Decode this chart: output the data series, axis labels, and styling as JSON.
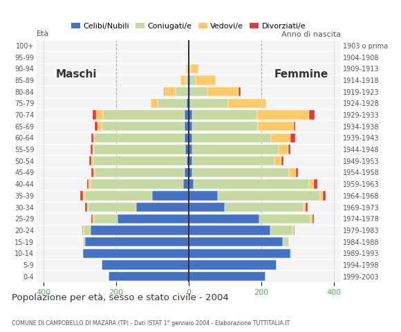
{
  "age_groups": [
    "0-4",
    "5-9",
    "10-14",
    "15-19",
    "20-24",
    "25-29",
    "30-34",
    "35-39",
    "40-44",
    "45-49",
    "50-54",
    "55-59",
    "60-64",
    "65-69",
    "70-74",
    "75-79",
    "80-84",
    "85-89",
    "90-94",
    "95-99",
    "100+"
  ],
  "birth_years": [
    "1999-2003",
    "1994-1998",
    "1989-1993",
    "1984-1988",
    "1979-1983",
    "1974-1978",
    "1969-1973",
    "1964-1968",
    "1959-1963",
    "1954-1958",
    "1949-1953",
    "1944-1948",
    "1939-1943",
    "1934-1938",
    "1929-1933",
    "1924-1928",
    "1919-1923",
    "1914-1918",
    "1909-1913",
    "1904-1908",
    "1903 o prima"
  ],
  "males": {
    "celibe": [
      220,
      240,
      290,
      285,
      270,
      195,
      145,
      100,
      15,
      10,
      5,
      8,
      10,
      10,
      10,
      5,
      0,
      0,
      0,
      0,
      0
    ],
    "coniugato": [
      0,
      0,
      2,
      5,
      18,
      65,
      130,
      185,
      255,
      248,
      258,
      252,
      248,
      230,
      225,
      80,
      35,
      8,
      3,
      0,
      0
    ],
    "vedovo": [
      0,
      0,
      0,
      0,
      3,
      5,
      5,
      5,
      5,
      5,
      5,
      5,
      5,
      10,
      20,
      20,
      30,
      15,
      3,
      0,
      0
    ],
    "divorziato": [
      0,
      0,
      0,
      0,
      2,
      3,
      5,
      8,
      5,
      5,
      5,
      5,
      5,
      8,
      10,
      0,
      2,
      0,
      0,
      0,
      0
    ]
  },
  "females": {
    "nubile": [
      212,
      242,
      280,
      260,
      225,
      195,
      100,
      80,
      15,
      10,
      10,
      10,
      10,
      10,
      10,
      5,
      5,
      5,
      2,
      0,
      0
    ],
    "coniugata": [
      0,
      0,
      5,
      18,
      62,
      142,
      218,
      282,
      318,
      268,
      228,
      238,
      218,
      182,
      180,
      105,
      48,
      15,
      5,
      0,
      0
    ],
    "vedova": [
      0,
      0,
      0,
      0,
      3,
      5,
      5,
      8,
      12,
      18,
      18,
      28,
      52,
      98,
      142,
      105,
      85,
      55,
      20,
      3,
      0
    ],
    "divorziata": [
      0,
      0,
      0,
      0,
      2,
      3,
      5,
      8,
      10,
      5,
      5,
      5,
      15,
      5,
      15,
      0,
      5,
      0,
      0,
      0,
      0
    ]
  },
  "colors": {
    "celibe": "#4472c4",
    "coniugato": "#c5d9a0",
    "vedovo": "#ffc966",
    "divorziato": "#e53935"
  },
  "xlim": 420,
  "xticks": [
    -400,
    -200,
    0,
    200,
    400
  ],
  "title": "Popolazione per età, sesso e stato civile - 2004",
  "subtitle": "COMUNE DI CAMPOBELLO DI MAZARA (TP) - Dati ISTAT 1° gennaio 2004 - Elaborazione TUTTITALIA.IT",
  "legend_labels": [
    "Celibi/Nubili",
    "Coniugati/e",
    "Vedovi/e",
    "Divorziati/e"
  ],
  "label_maschi": "Maschi",
  "label_femmine": "Femmine",
  "label_eta": "Età",
  "label_anno": "Anno di nascita",
  "bg_color": "#f5f5f5"
}
